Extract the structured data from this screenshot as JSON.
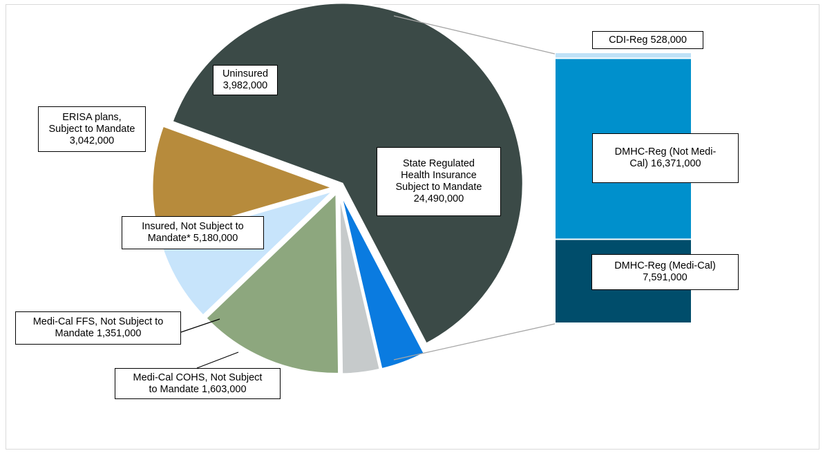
{
  "chart_data": {
    "type": "pie",
    "pie": {
      "slices": [
        {
          "label": "State Regulated Health Insurance Subject to Mandate 24,490,000",
          "value": 24490000,
          "color": "#3b4a47"
        },
        {
          "label": "Medi-Cal COHS, Not Subject to Mandate 1,603,000",
          "value": 1603000,
          "color": "#0a7be0"
        },
        {
          "label": "Medi-Cal FFS, Not Subject to Mandate 1,351,000",
          "value": 1351000,
          "color": "#c6cacb"
        },
        {
          "label": "Insured, Not Subject to Mandate* 5,180,000",
          "value": 5180000,
          "color": "#8da77e"
        },
        {
          "label": "ERISA plans, Subject to Mandate 3,042,000",
          "value": 3042000,
          "color": "#c7e4fb"
        },
        {
          "label": "Uninsured 3,982,000",
          "value": 3982000,
          "color": "#b78b3c"
        }
      ]
    },
    "bar_of_pie": {
      "segments": [
        {
          "label": "CDI-Reg 528,000",
          "value": 528000,
          "color": "#bfe1f7"
        },
        {
          "label": "DMHC-Reg (Not Medi-Cal) 16,371,000",
          "value": 16371000,
          "color": "#0090cc"
        },
        {
          "label": "DMHC-Reg (Medi-Cal) 7,591,000",
          "value": 7591000,
          "color": "#004d6b"
        }
      ]
    }
  },
  "labels": {
    "state_regulated": "State Regulated\nHealth Insurance\nSubject to Mandate\n24,490,000",
    "uninsured": "Uninsured\n3,982,000",
    "erisa": "ERISA plans,\nSubject to Mandate\n3,042,000",
    "insured_not_subject": "Insured, Not Subject to\nMandate* 5,180,000",
    "medi_cal_ffs": "Medi-Cal FFS, Not Subject to\nMandate 1,351,000",
    "medi_cal_cohs": "Medi-Cal COHS, Not Subject\nto Mandate 1,603,000",
    "cdi_reg": "CDI-Reg 528,000",
    "dmhc_not_medi_cal": "DMHC-Reg (Not Medi-\nCal) 16,371,000",
    "dmhc_medi_cal": "DMHC-Reg (Medi-Cal)\n7,591,000"
  }
}
